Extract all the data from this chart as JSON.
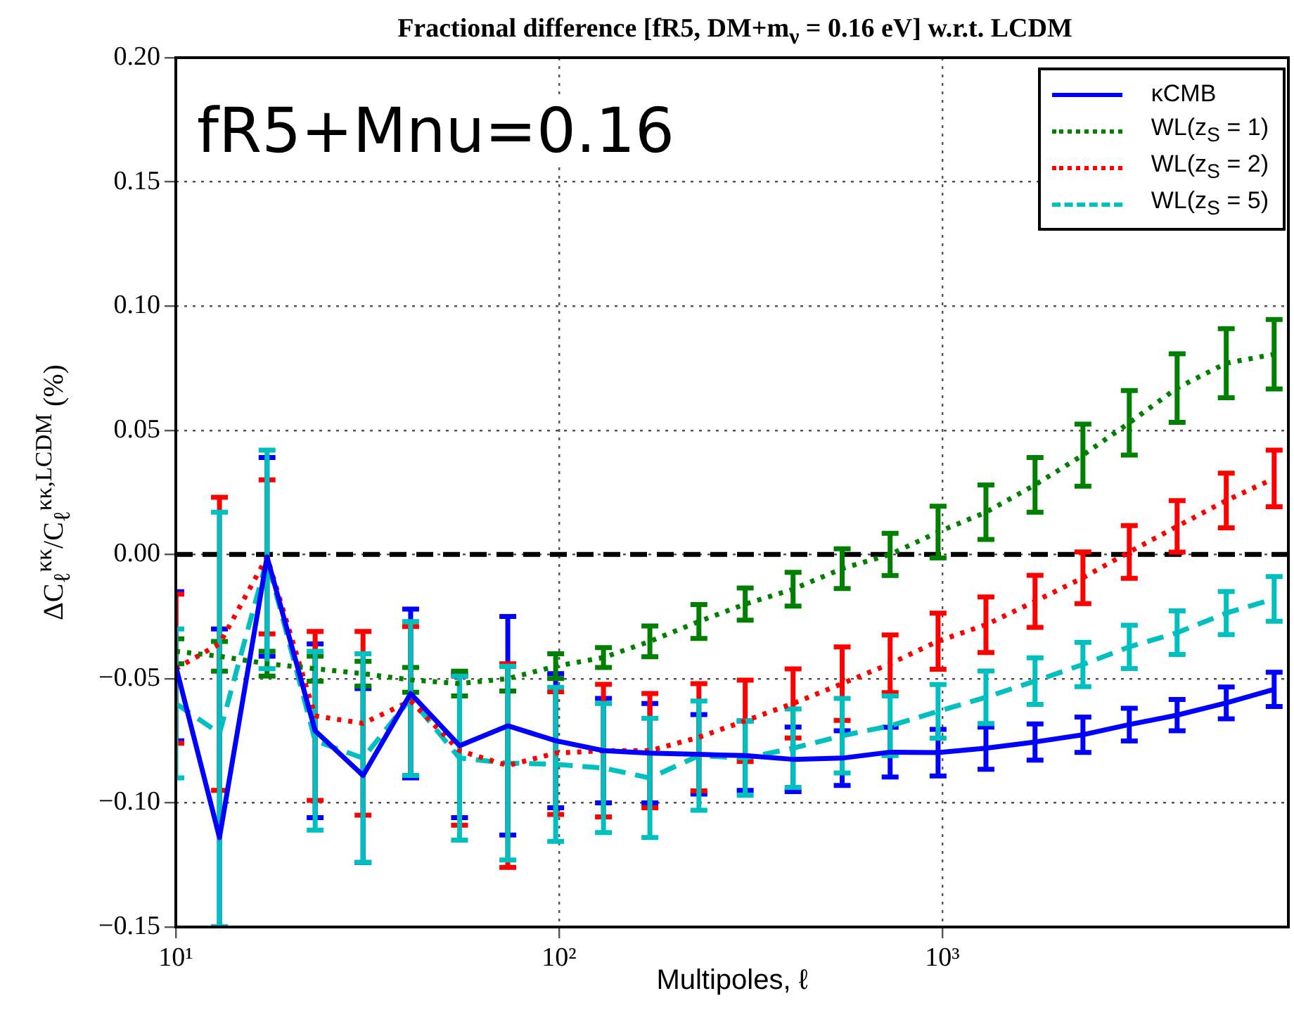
{
  "chart_data": {
    "type": "line",
    "title": "Fractional difference [fR5, DM+m$_{ν}$ = 0.16 eV] w.r.t. LCDM",
    "xlabel": "Multipoles, ℓ",
    "ylabel": "ΔC$_{ℓ}$$^{κκ}$/C$_{ℓ}$$^{κκ,LCDM}$ (%)",
    "annotations": [
      "fR5+Mnu=0.16"
    ],
    "x": [
      10,
      13,
      17.3,
      23.1,
      30.8,
      41,
      55,
      73.5,
      98,
      130.6,
      172.6,
      231.7,
      306,
      408,
      548,
      731,
      975,
      1300,
      1746,
      2328,
      3076,
      4100,
      5508,
      7345
    ],
    "log": "x",
    "xlim": [
      10,
      8000
    ],
    "xticks": [
      {
        "value": 10,
        "label": "10¹"
      },
      {
        "value": 100,
        "label": "10²"
      },
      {
        "value": 1000,
        "label": "10³"
      }
    ],
    "ylim": [
      -0.15,
      0.2
    ],
    "yticks": [
      {
        "value": -0.15,
        "label": "−0.15"
      },
      {
        "value": -0.1,
        "label": "−0.10"
      },
      {
        "value": -0.05,
        "label": "−0.05"
      },
      {
        "value": 0,
        "label": "0.00"
      },
      {
        "value": 0.05,
        "label": "0.05"
      },
      {
        "value": 0.1,
        "label": "0.10"
      },
      {
        "value": 0.15,
        "label": "0.15"
      },
      {
        "value": 0.2,
        "label": "0.20"
      }
    ],
    "grid": true,
    "legend": "top right",
    "marker": "none",
    "ref_lines": [
      {
        "axis": "y",
        "value": 0,
        "color": "#000000",
        "line_style": "dashed"
      }
    ],
    "series": [
      {
        "name": "κCMB",
        "color": "#0000ff",
        "line_style": "solid",
        "values": [
          -0.045,
          -0.114,
          -0.001,
          -0.071,
          -0.089,
          -0.056,
          -0.077,
          -0.069,
          -0.075,
          -0.079,
          -0.08,
          -0.0805,
          -0.081,
          -0.0825,
          -0.082,
          -0.0796,
          -0.0798,
          -0.078,
          -0.0755,
          -0.0726,
          -0.0685,
          -0.0647,
          -0.0598,
          -0.0543
        ],
        "errors": [
          0.03,
          [
            -0.15,
            -0.03
          ],
          0.04,
          0.035,
          0.035,
          0.034,
          0.029,
          0.044,
          0.027,
          0.021,
          0.02,
          0.016,
          0.014,
          0.013,
          0.011,
          0.01,
          0.0094,
          0.0085,
          0.0073,
          0.0071,
          0.0066,
          0.0063,
          0.0064,
          0.0069
        ]
      },
      {
        "name": "WL(z$_{S}$ = 1)",
        "color": "#007f00",
        "line_style": "dotted",
        "values": [
          -0.039,
          -0.041,
          -0.044,
          -0.046,
          -0.048,
          -0.0505,
          -0.052,
          -0.05,
          -0.045,
          -0.0415,
          -0.035,
          -0.027,
          -0.02,
          -0.014,
          -0.0057,
          0.0,
          0.009,
          0.017,
          0.028,
          0.04,
          0.053,
          0.067,
          0.077,
          0.0806
        ],
        "errors": [
          0.005,
          0.006,
          0.005,
          0.005,
          0.005,
          0.005,
          0.005,
          0.005,
          0.005,
          0.004,
          0.0062,
          0.0068,
          0.0065,
          0.0068,
          0.008,
          0.0085,
          0.0104,
          0.011,
          0.011,
          0.0125,
          0.013,
          0.0138,
          0.0139,
          0.014
        ]
      },
      {
        "name": "WL(z$_{S}$ = 2)",
        "color": "#ff0000",
        "line_style": "dotted",
        "values": [
          -0.046,
          -0.036,
          -0.001,
          -0.065,
          -0.068,
          -0.059,
          -0.079,
          -0.085,
          -0.08,
          -0.079,
          -0.079,
          -0.0736,
          -0.067,
          -0.06,
          -0.052,
          -0.044,
          -0.0349,
          -0.0283,
          -0.0189,
          -0.0094,
          0.001,
          0.0113,
          0.0217,
          0.0306
        ],
        "errors": [
          0.03,
          0.059,
          0.031,
          0.034,
          0.037,
          0.03,
          0.03,
          0.041,
          0.0247,
          0.0267,
          0.023,
          0.0216,
          0.0164,
          0.0139,
          0.0148,
          0.0116,
          0.0113,
          0.0112,
          0.0105,
          0.0104,
          0.0106,
          0.0104,
          0.011,
          0.0114
        ]
      },
      {
        "name": "WL(z$_{S}$ = 5)",
        "color": "#00bfbf",
        "line_style": "dashed",
        "values": [
          -0.06,
          -0.072,
          -0.002,
          -0.075,
          -0.082,
          -0.058,
          -0.082,
          -0.084,
          -0.0845,
          -0.086,
          -0.09,
          -0.081,
          -0.082,
          -0.078,
          -0.073,
          -0.069,
          -0.0632,
          -0.0575,
          -0.051,
          -0.0443,
          -0.0372,
          -0.0315,
          -0.0236,
          -0.0179
        ],
        "errors": [
          0.03,
          [
            -0.15,
            0.017
          ],
          0.044,
          0.036,
          0.042,
          0.031,
          0.033,
          0.039,
          0.031,
          0.026,
          0.024,
          0.022,
          0.015,
          0.0158,
          0.015,
          0.012,
          0.0108,
          0.0106,
          0.0094,
          0.0089,
          0.0087,
          0.0088,
          0.0087,
          0.009
        ]
      }
    ]
  }
}
